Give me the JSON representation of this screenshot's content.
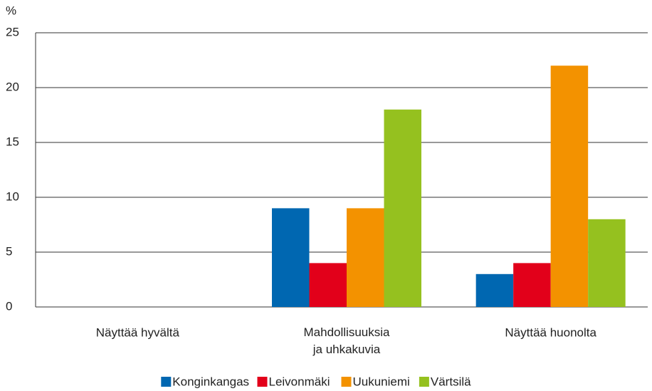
{
  "chart_data": {
    "type": "bar",
    "y_label": "%",
    "categories": [
      "Näyttää hyvältä",
      "Mahdollisuuksia\nja uhkakuvia",
      "Näyttää huonolta"
    ],
    "series": [
      {
        "name": "Konginkangas",
        "color": "#0067b1",
        "values": [
          0,
          9,
          3
        ]
      },
      {
        "name": "Leivonmäki",
        "color": "#e2001a",
        "values": [
          0,
          4,
          4
        ]
      },
      {
        "name": "Uukuniemi",
        "color": "#f39200",
        "values": [
          0,
          9,
          22
        ]
      },
      {
        "name": "Värtsilä",
        "color": "#95c11f",
        "values": [
          0,
          18,
          8
        ]
      }
    ],
    "ylim": [
      0,
      25
    ],
    "yticks": [
      0,
      5,
      10,
      15,
      20,
      25
    ],
    "grid": true,
    "legend": "bottom"
  }
}
